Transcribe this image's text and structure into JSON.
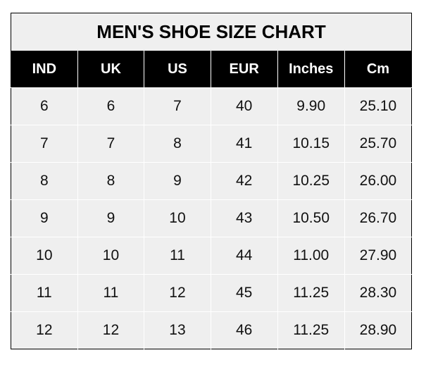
{
  "chart_data": {
    "type": "table",
    "title": "MEN'S SHOE SIZE CHART",
    "columns": [
      "IND",
      "UK",
      "US",
      "EUR",
      "Inches",
      "Cm"
    ],
    "rows": [
      [
        "6",
        "6",
        "7",
        "40",
        "9.90",
        "25.10"
      ],
      [
        "7",
        "7",
        "8",
        "41",
        "10.15",
        "25.70"
      ],
      [
        "8",
        "8",
        "9",
        "42",
        "10.25",
        "26.00"
      ],
      [
        "9",
        "9",
        "10",
        "43",
        "10.50",
        "26.70"
      ],
      [
        "10",
        "10",
        "11",
        "44",
        "11.00",
        "27.90"
      ],
      [
        "11",
        "11",
        "12",
        "45",
        "11.25",
        "28.30"
      ],
      [
        "12",
        "12",
        "13",
        "46",
        "11.25",
        "28.90"
      ]
    ]
  },
  "colors": {
    "header_bg": "#000000",
    "header_text": "#ffffff",
    "body_bg": "#efefef"
  }
}
